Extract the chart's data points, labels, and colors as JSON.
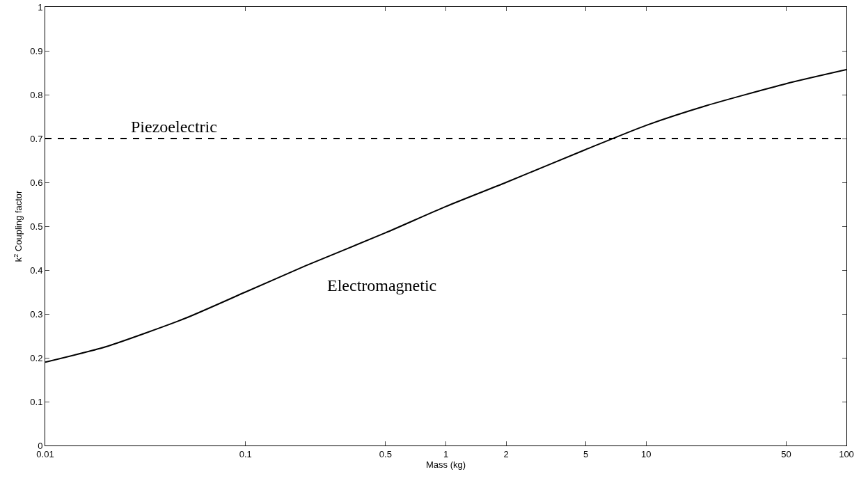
{
  "chart_data": {
    "type": "line",
    "xlabel": "Mass (kg)",
    "ylabel": "k$^{2}$ Coupling factor",
    "log": "x",
    "marker": "none",
    "line_style": "solid",
    "x": [
      0.01,
      0.02,
      0.05,
      0.1,
      0.2,
      0.5,
      1,
      2,
      5,
      10,
      20,
      50,
      100
    ],
    "series": [
      {
        "color": "#000000",
        "values": [
          0.19,
          0.225,
          0.29,
          0.35,
          0.41,
          0.485,
          0.545,
          0.6,
          0.675,
          0.73,
          0.775,
          0.825,
          0.857
        ]
      }
    ],
    "xlim": [
      0.01,
      100
    ],
    "xticks": [
      0.01,
      0.1,
      0.5,
      1,
      2,
      5,
      10,
      50,
      100
    ],
    "ylim": [
      0,
      1
    ],
    "yticks": [
      0,
      0.1,
      0.2,
      0.3,
      0.4,
      0.5,
      0.6,
      0.7,
      0.8,
      0.9,
      1
    ],
    "ref_lines": [
      {
        "axis": "y",
        "value": 0.7,
        "label": "Piezoelectric",
        "color": "#000000",
        "line_style": "dashed"
      }
    ],
    "annotations": [
      "Electromagnetic"
    ]
  }
}
